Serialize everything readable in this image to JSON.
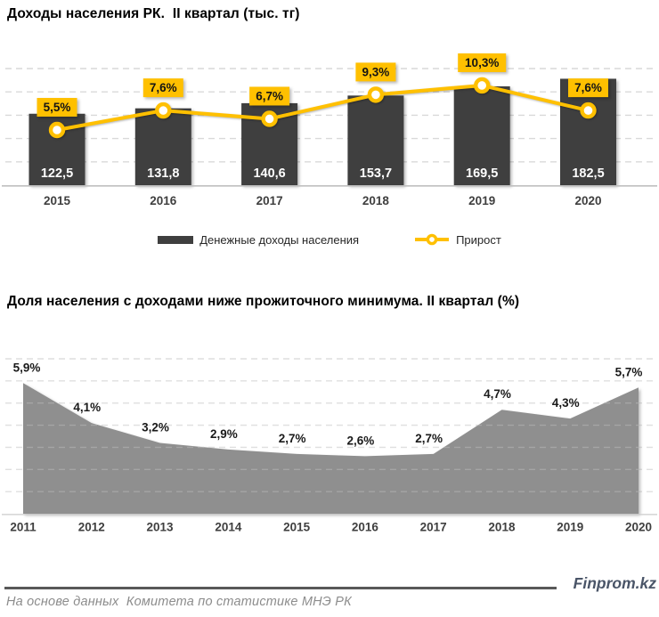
{
  "colors": {
    "bar": "#3f3f3f",
    "accent": "#ffc000",
    "area": "#8f8f8f",
    "grid": "#d9d9d9",
    "axis": "#bfbfbf",
    "text_dark": "#3f3f3f",
    "callout_text": "#141414",
    "bar_value_text": "#ffffff",
    "brand_text": "#4a5568",
    "source_text": "#8c8c8c"
  },
  "chart_data": [
    {
      "type": "bar+line",
      "title": "Доходы населения РК.  II квартал (тыс. тг)",
      "categories": [
        "2015",
        "2016",
        "2017",
        "2018",
        "2019",
        "2020"
      ],
      "series": [
        {
          "name": "Денежные доходы населения",
          "type": "bar",
          "values": [
            122.5,
            131.8,
            140.6,
            153.7,
            169.5,
            182.5
          ],
          "value_labels": [
            "122,5",
            "131,8",
            "140,6",
            "153,7",
            "169,5",
            "182,5"
          ],
          "axis": {
            "min": 0,
            "max": 200,
            "gridline_step": 40
          }
        },
        {
          "name": "Прирост",
          "type": "line",
          "unit": "%",
          "values": [
            5.5,
            7.6,
            6.7,
            9.3,
            10.3,
            7.6
          ],
          "value_labels": [
            "5,5%",
            "7,6%",
            "6,7%",
            "9,3%",
            "10,3%",
            "7,6%"
          ],
          "axis": {
            "min": 0,
            "max": 12.5
          }
        }
      ],
      "grid": true,
      "legend_position": "bottom"
    },
    {
      "type": "area",
      "title": "Доля населения с доходами ниже прожиточного минимума. II квартал (%)",
      "categories": [
        "2011",
        "2012",
        "2013",
        "2014",
        "2015",
        "2016",
        "2017",
        "2018",
        "2019",
        "2020"
      ],
      "values": [
        5.9,
        4.1,
        3.2,
        2.9,
        2.7,
        2.6,
        2.7,
        4.7,
        4.3,
        5.7
      ],
      "value_labels": [
        "5,9%",
        "4,1%",
        "3,2%",
        "2,9%",
        "2,7%",
        "2,6%",
        "2,7%",
        "4,7%",
        "4,3%",
        "5,7%"
      ],
      "ylim": [
        0,
        7
      ],
      "grid": true,
      "legend_position": "none"
    }
  ],
  "footer": {
    "source": "На основе данных  Комитета по статистике МНЭ РК",
    "brand": "Finprom.kz"
  }
}
